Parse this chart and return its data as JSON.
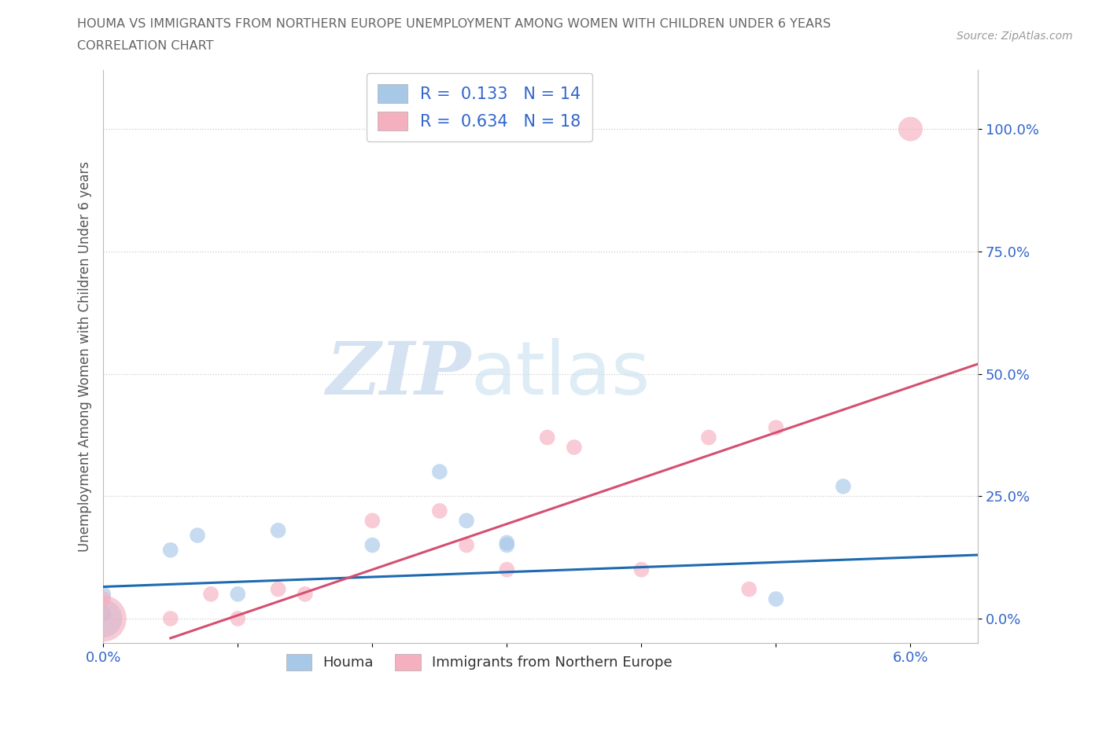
{
  "title_line1": "HOUMA VS IMMIGRANTS FROM NORTHERN EUROPE UNEMPLOYMENT AMONG WOMEN WITH CHILDREN UNDER 6 YEARS",
  "title_line2": "CORRELATION CHART",
  "source_text": "Source: ZipAtlas.com",
  "ylabel": "Unemployment Among Women with Children Under 6 years",
  "xlim": [
    0.0,
    0.065
  ],
  "ylim": [
    -0.05,
    1.12
  ],
  "xtick_positions": [
    0.0,
    0.01,
    0.02,
    0.03,
    0.04,
    0.05,
    0.06
  ],
  "xticklabels": [
    "0.0%",
    "",
    "",
    "",
    "",
    "",
    "6.0%"
  ],
  "ytick_positions": [
    0.0,
    0.25,
    0.5,
    0.75,
    1.0
  ],
  "yticklabels": [
    "0.0%",
    "25.0%",
    "50.0%",
    "75.0%",
    "100.0%"
  ],
  "houma_color": "#a8c8e8",
  "immigrants_color": "#f5b0c0",
  "houma_line_color": "#1e6ab0",
  "immigrants_line_color": "#d45070",
  "watermark_zip": "ZIP",
  "watermark_atlas": "atlas",
  "legend_r_houma": "0.133",
  "legend_n_houma": "14",
  "legend_r_immigrants": "0.634",
  "legend_n_immigrants": "18",
  "houma_x": [
    0.0,
    0.0,
    0.0,
    0.005,
    0.007,
    0.01,
    0.013,
    0.02,
    0.025,
    0.027,
    0.03,
    0.03,
    0.05,
    0.055
  ],
  "houma_y": [
    0.0,
    0.01,
    0.05,
    0.14,
    0.17,
    0.05,
    0.18,
    0.15,
    0.3,
    0.2,
    0.15,
    0.155,
    0.04,
    0.27
  ],
  "houma_sizes": [
    1200,
    200,
    200,
    200,
    200,
    200,
    200,
    200,
    200,
    200,
    200,
    200,
    200,
    200
  ],
  "immigrants_x": [
    0.0,
    0.0,
    0.005,
    0.008,
    0.01,
    0.013,
    0.015,
    0.02,
    0.025,
    0.027,
    0.03,
    0.033,
    0.035,
    0.04,
    0.045,
    0.048,
    0.05,
    0.06
  ],
  "immigrants_y": [
    0.0,
    0.04,
    0.0,
    0.05,
    0.0,
    0.06,
    0.05,
    0.2,
    0.22,
    0.15,
    0.1,
    0.37,
    0.35,
    0.1,
    0.37,
    0.06,
    0.39,
    1.0
  ],
  "immigrants_sizes": [
    1800,
    200,
    200,
    200,
    200,
    200,
    200,
    200,
    200,
    200,
    200,
    200,
    200,
    200,
    200,
    200,
    200,
    500
  ],
  "houma_line_x": [
    0.0,
    0.065
  ],
  "houma_line_y": [
    0.065,
    0.13
  ],
  "immigrants_line_x": [
    0.005,
    0.065
  ],
  "immigrants_line_y": [
    -0.04,
    0.52
  ]
}
